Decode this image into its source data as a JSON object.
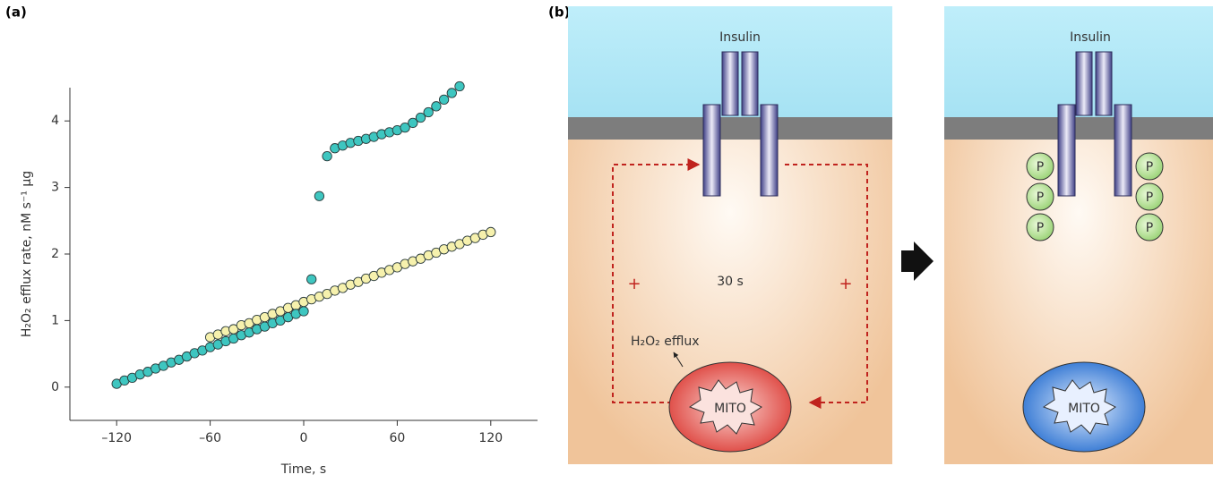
{
  "panel_labels": [
    "(a)",
    "(b)"
  ],
  "chart_data": {
    "type": "scatter",
    "x_label": "Time, s",
    "y_label": "H₂O₂ efflux rate, nM s⁻¹ μg",
    "xlim": [
      -150,
      150
    ],
    "ylim": [
      -0.5,
      4.5
    ],
    "xticks": [
      {
        "value": -120,
        "label": "–120"
      },
      {
        "value": -60,
        "label": "–60"
      },
      0,
      60,
      120
    ],
    "yticks": [
      0,
      1,
      2,
      3,
      4
    ],
    "series": [
      {
        "color": "#f6f1ad",
        "x": [
          -60,
          -55,
          -50,
          -45,
          -40,
          -35,
          -30,
          -25,
          -20,
          -15,
          -10,
          -5,
          0,
          5,
          10,
          15,
          20,
          25,
          30,
          35,
          40,
          45,
          50,
          55,
          60,
          65,
          70,
          75,
          80,
          85,
          90,
          95,
          100,
          105,
          110,
          115,
          120
        ],
        "values": [
          0.75,
          0.79,
          0.84,
          0.87,
          0.93,
          0.96,
          1.01,
          1.05,
          1.1,
          1.14,
          1.19,
          1.23,
          1.28,
          1.32,
          1.36,
          1.4,
          1.45,
          1.49,
          1.54,
          1.58,
          1.63,
          1.67,
          1.72,
          1.76,
          1.8,
          1.85,
          1.89,
          1.93,
          1.98,
          2.02,
          2.07,
          2.11,
          2.15,
          2.2,
          2.24,
          2.29,
          2.33
        ]
      },
      {
        "color": "#3ec6c0",
        "x": [
          -120,
          -115,
          -110,
          -105,
          -100,
          -95,
          -90,
          -85,
          -80,
          -75,
          -70,
          -65,
          -60,
          -55,
          -50,
          -45,
          -40,
          -35,
          -30,
          -25,
          -20,
          -15,
          -10,
          -5,
          0,
          5,
          10,
          15,
          20,
          25,
          30,
          35,
          40,
          45,
          50,
          55,
          60,
          65,
          70,
          75,
          80,
          85,
          90,
          95,
          100
        ],
        "values": [
          0.05,
          0.1,
          0.14,
          0.19,
          0.23,
          0.28,
          0.32,
          0.37,
          0.41,
          0.46,
          0.51,
          0.55,
          0.6,
          0.64,
          0.69,
          0.73,
          0.78,
          0.82,
          0.87,
          0.91,
          0.96,
          1.0,
          1.05,
          1.1,
          1.14,
          1.62,
          2.87,
          3.47,
          3.59,
          3.63,
          3.67,
          3.7,
          3.73,
          3.76,
          3.8,
          3.83,
          3.86,
          3.9,
          3.97,
          4.05,
          4.13,
          4.22,
          4.32,
          4.42,
          4.52
        ]
      }
    ]
  },
  "diagram": {
    "left": {
      "insulin": "Insulin",
      "time": "30 s",
      "plus": [
        "+",
        "+"
      ],
      "efflux": "H₂O₂ efflux",
      "mito": "MITO"
    },
    "right": {
      "insulin": "Insulin",
      "phospho": [
        "P",
        "P",
        "P",
        "P",
        "P",
        "P"
      ],
      "mito": "MITO"
    }
  }
}
